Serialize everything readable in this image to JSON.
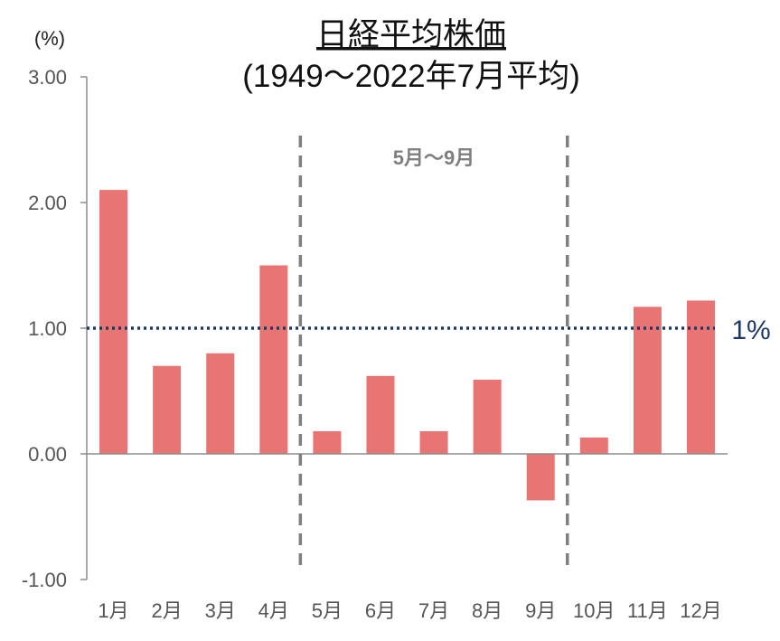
{
  "chart_data": {
    "type": "bar",
    "title": "日経平均株価",
    "subtitle": "(1949～2022年7月平均)",
    "unit_label": "(%)",
    "categories": [
      "1月",
      "2月",
      "3月",
      "4月",
      "5月",
      "6月",
      "7月",
      "8月",
      "9月",
      "10月",
      "11月",
      "12月"
    ],
    "values": [
      2.1,
      0.7,
      0.8,
      1.5,
      0.18,
      0.62,
      0.18,
      0.59,
      -0.37,
      0.13,
      1.17,
      1.22
    ],
    "ylim": [
      -1.0,
      3.0
    ],
    "yticks": [
      3.0,
      2.0,
      1.0,
      0.0,
      -1.0
    ],
    "ytick_labels": [
      "3.00",
      "2.00",
      "1.00",
      "0.00",
      "-1.00"
    ],
    "reference_line": {
      "value": 1.0,
      "label": "1%",
      "color": "#1f3864",
      "style": "dotted"
    },
    "highlight_region": {
      "label": "5月～9月",
      "start_category": "5月",
      "end_category": "9月",
      "color": "#7f7f7f",
      "style": "dashed"
    },
    "bar_color": "#e87573",
    "axis_color": "#8c8c8c",
    "grid": false,
    "legend": "none"
  }
}
